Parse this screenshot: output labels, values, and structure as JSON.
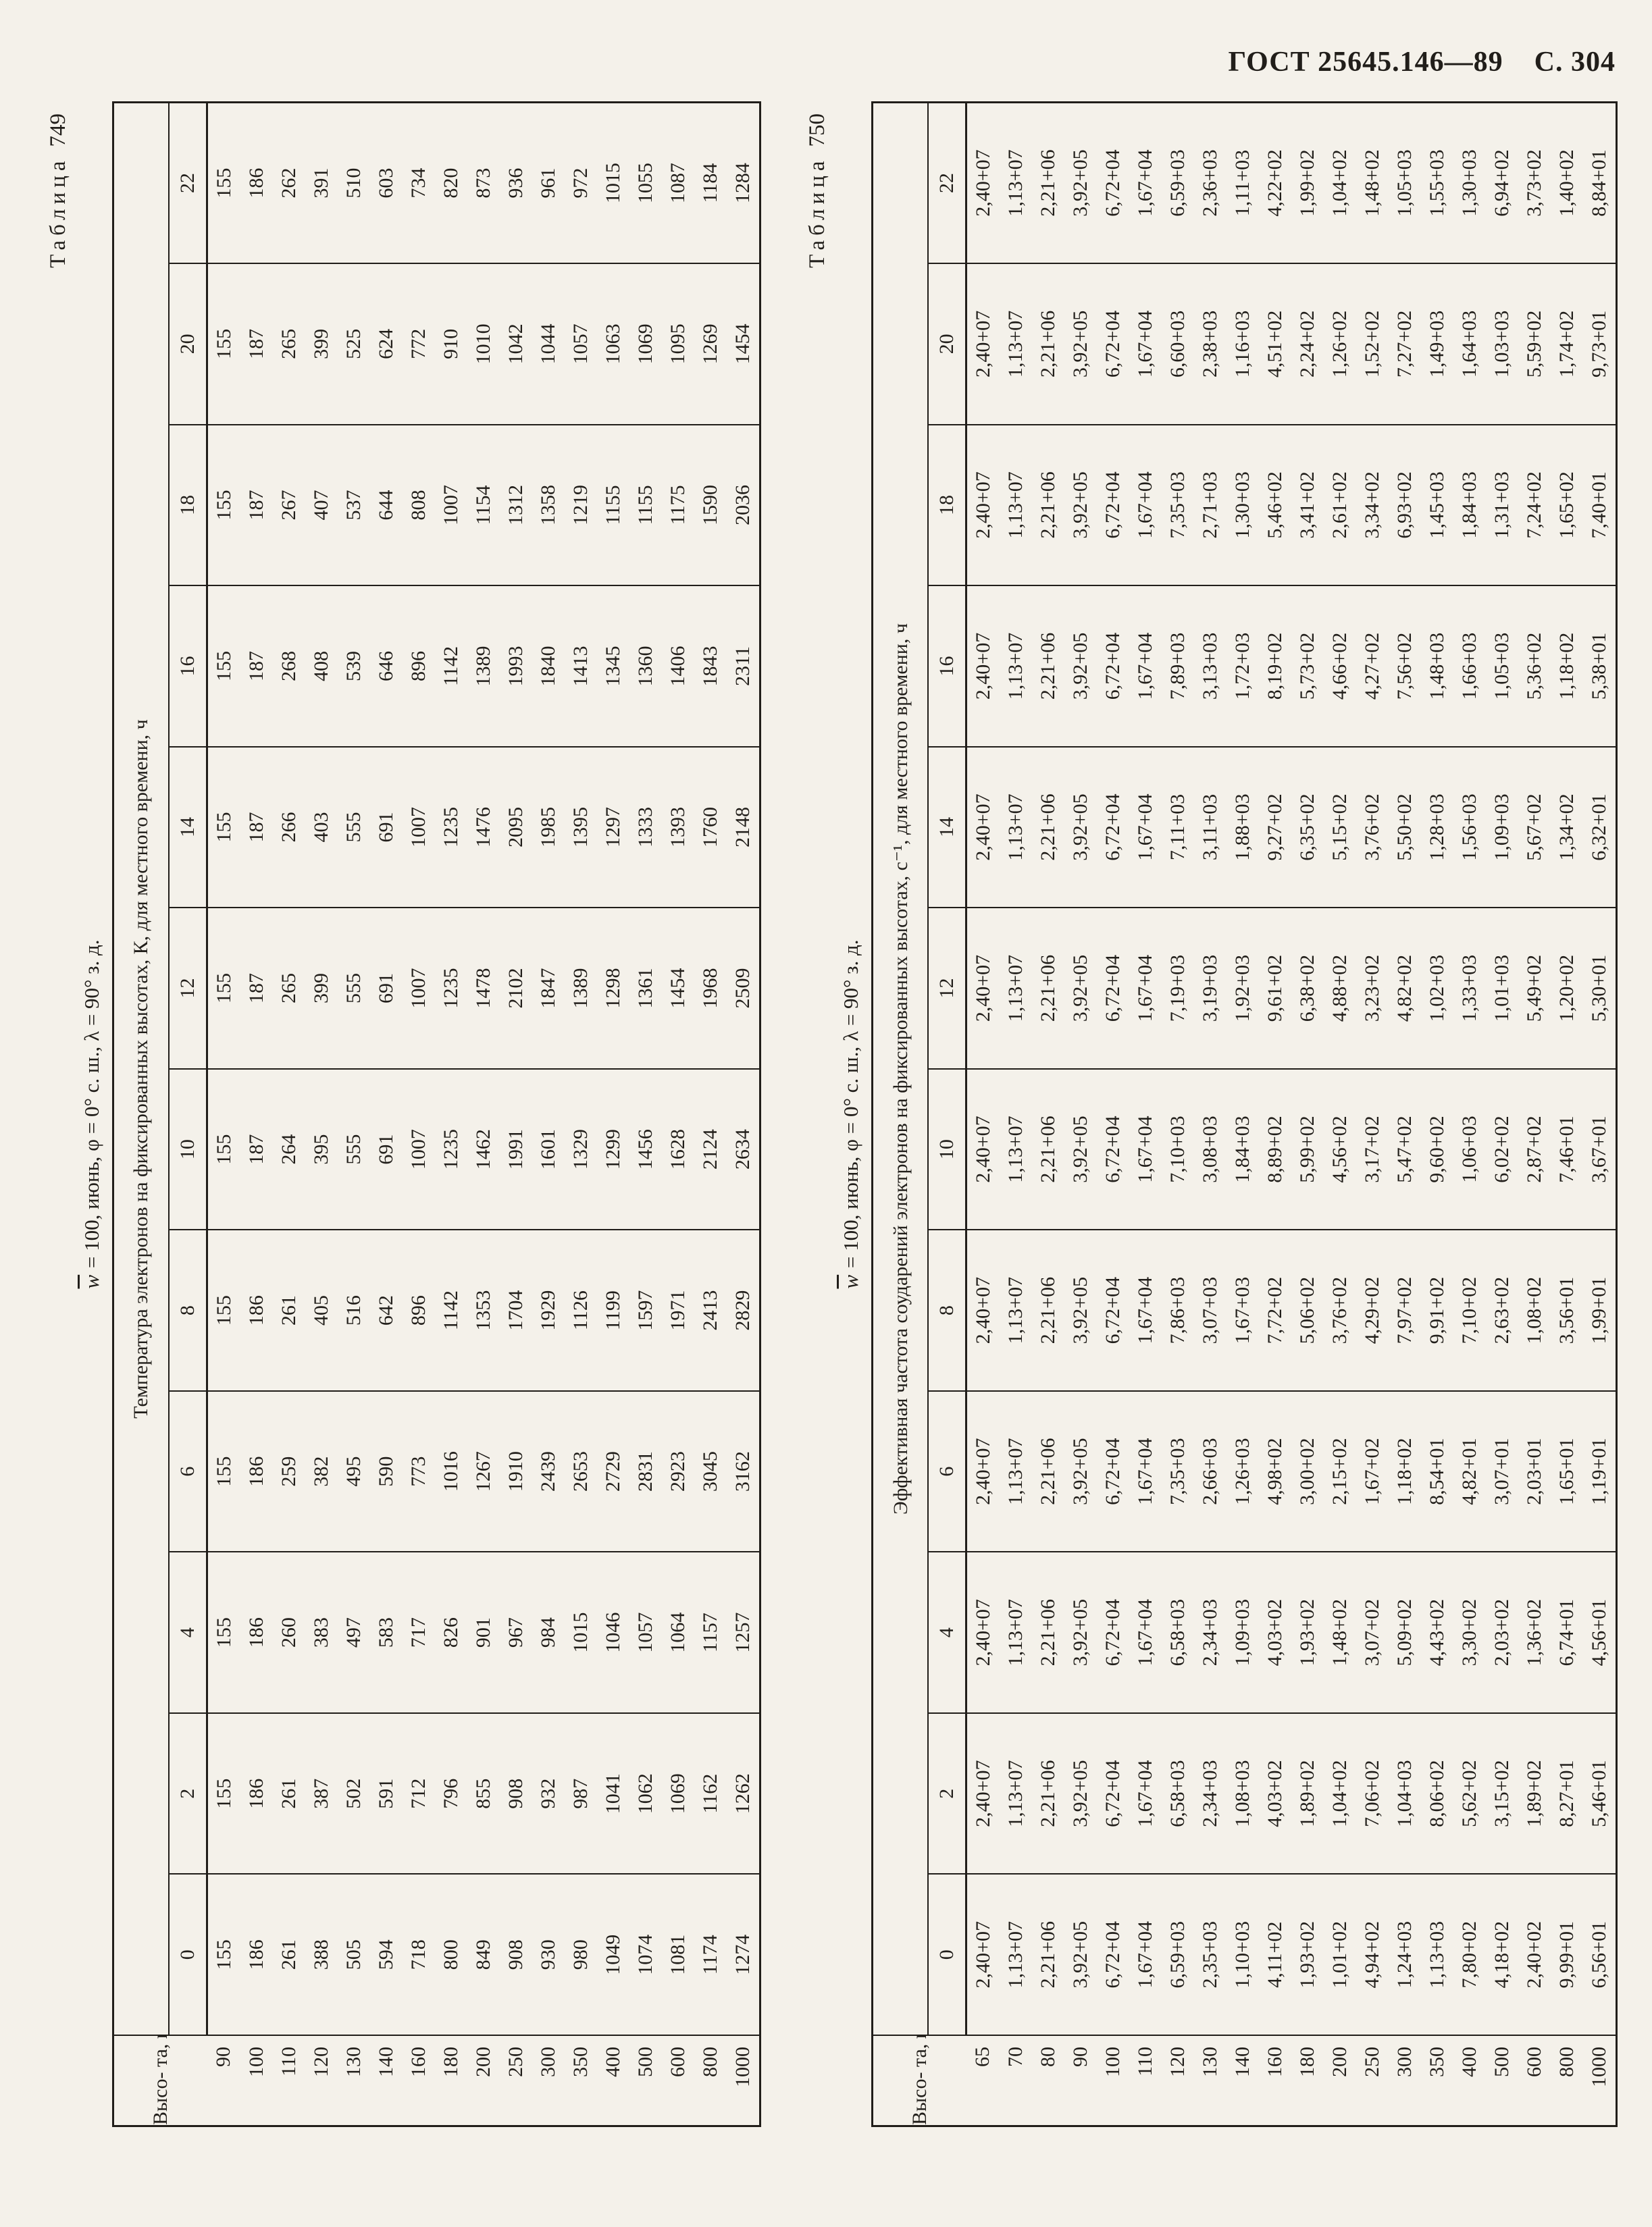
{
  "page_header": {
    "standard": "ГОСТ 25645.146—89",
    "page": "С. 304"
  },
  "tables": [
    {
      "caption_word": "Таблица",
      "caption_number": "749",
      "param_symbol": "w",
      "param_rest": " = 100, июнь, φ = 0° с. ш., λ = 90° з. д.",
      "quantity_header": "Температура электронов на фиксированных высотах, К, для местного времени, ч",
      "row_header": "Высо-\nта, км",
      "hours": [
        "0",
        "2",
        "4",
        "6",
        "8",
        "10",
        "12",
        "14",
        "16",
        "18",
        "20",
        "22"
      ],
      "heights": [
        "90",
        "100",
        "110",
        "120",
        "130",
        "140",
        "160",
        "180",
        "200",
        "250",
        "300",
        "350",
        "400",
        "500",
        "600",
        "800",
        "1000"
      ],
      "values": [
        [
          155,
          186,
          261,
          388,
          505,
          594,
          718,
          800,
          849,
          908,
          930,
          980,
          1049,
          1074,
          1081,
          1174,
          1274
        ],
        [
          155,
          186,
          261,
          387,
          502,
          591,
          712,
          796,
          855,
          908,
          932,
          987,
          1041,
          1062,
          1069,
          1162,
          1262
        ],
        [
          155,
          186,
          260,
          383,
          497,
          583,
          717,
          826,
          901,
          967,
          984,
          1015,
          1046,
          1057,
          1064,
          1157,
          1257
        ],
        [
          155,
          186,
          259,
          382,
          495,
          590,
          773,
          1016,
          1267,
          1910,
          2439,
          2653,
          2729,
          2831,
          2923,
          3045,
          3162
        ],
        [
          155,
          186,
          261,
          405,
          516,
          642,
          896,
          1142,
          1353,
          1704,
          1929,
          1126,
          1199,
          1597,
          1971,
          2413,
          2829
        ],
        [
          155,
          187,
          264,
          395,
          555,
          691,
          1007,
          1235,
          1462,
          1991,
          1601,
          1329,
          1299,
          1456,
          1628,
          2124,
          2634
        ],
        [
          155,
          187,
          265,
          399,
          555,
          691,
          1007,
          1235,
          1478,
          2102,
          1847,
          1389,
          1298,
          1361,
          1454,
          1968,
          2509
        ],
        [
          155,
          187,
          266,
          403,
          555,
          691,
          1007,
          1235,
          1476,
          2095,
          1985,
          1395,
          1297,
          1333,
          1393,
          1760,
          2148
        ],
        [
          155,
          187,
          268,
          408,
          539,
          646,
          896,
          1142,
          1389,
          1993,
          1840,
          1413,
          1345,
          1360,
          1406,
          1843,
          2311
        ],
        [
          155,
          187,
          267,
          407,
          537,
          644,
          808,
          1007,
          1154,
          1312,
          1358,
          1219,
          1155,
          1155,
          1175,
          1590,
          2036
        ],
        [
          155,
          187,
          265,
          399,
          525,
          624,
          772,
          910,
          1010,
          1042,
          1044,
          1057,
          1063,
          1069,
          1095,
          1269,
          1454
        ],
        [
          155,
          186,
          262,
          391,
          510,
          603,
          734,
          820,
          873,
          936,
          961,
          972,
          1015,
          1055,
          1087,
          1184,
          1284
        ]
      ]
    },
    {
      "caption_word": "Таблица",
      "caption_number": "750",
      "param_symbol": "w",
      "param_rest": " = 100, июнь, φ = 0° с. ш., λ = 90° з. д.",
      "quantity_header": "Эффективная частота соударений электронов на фиксированных высотах, с⁻¹, для местного времени, ч",
      "row_header": "Высо-\nта, км",
      "hours": [
        "0",
        "2",
        "4",
        "6",
        "8",
        "10",
        "12",
        "14",
        "16",
        "18",
        "20",
        "22"
      ],
      "heights": [
        "65",
        "70",
        "80",
        "90",
        "100",
        "110",
        "120",
        "130",
        "140",
        "160",
        "180",
        "200",
        "250",
        "300",
        "350",
        "400",
        "500",
        "600",
        "800",
        "1000"
      ],
      "values": [
        [
          "2,40+07",
          "1,13+07",
          "2,21+06",
          "3,92+05",
          "6,72+04",
          "1,67+04",
          "6,59+03",
          "2,35+03",
          "1,10+03",
          "4,11+02",
          "1,93+02",
          "1,01+02",
          "4,94+02",
          "1,24+03",
          "1,13+03",
          "7,80+02",
          "4,18+02",
          "2,40+02",
          "9,99+01",
          "6,56+01"
        ],
        [
          "2,40+07",
          "1,13+07",
          "2,21+06",
          "3,92+05",
          "6,72+04",
          "1,67+04",
          "6,58+03",
          "2,34+03",
          "1,08+03",
          "4,03+02",
          "1,89+02",
          "1,04+02",
          "7,06+02",
          "1,04+03",
          "8,06+02",
          "5,62+02",
          "3,15+02",
          "1,89+02",
          "8,27+01",
          "5,46+01"
        ],
        [
          "2,40+07",
          "1,13+07",
          "2,21+06",
          "3,92+05",
          "6,72+04",
          "1,67+04",
          "6,58+03",
          "2,34+03",
          "1,09+03",
          "4,03+02",
          "1,93+02",
          "1,48+02",
          "3,07+02",
          "5,09+02",
          "4,43+02",
          "3,30+02",
          "2,03+02",
          "1,36+02",
          "6,74+01",
          "4,56+01"
        ],
        [
          "2,40+07",
          "1,13+07",
          "2,21+06",
          "3,92+05",
          "6,72+04",
          "1,67+04",
          "7,35+03",
          "2,66+03",
          "1,26+03",
          "4,98+02",
          "3,00+02",
          "2,15+02",
          "1,67+02",
          "1,18+02",
          "8,54+01",
          "4,82+01",
          "3,07+01",
          "2,03+01",
          "1,65+01",
          "1,19+01"
        ],
        [
          "2,40+07",
          "1,13+07",
          "2,21+06",
          "3,92+05",
          "6,72+04",
          "1,67+04",
          "7,86+03",
          "3,07+03",
          "1,67+03",
          "7,72+02",
          "5,06+02",
          "3,76+02",
          "4,29+02",
          "7,97+02",
          "9,91+02",
          "7,10+02",
          "2,63+02",
          "1,08+02",
          "3,56+01",
          "1,99+01"
        ],
        [
          "2,40+07",
          "1,13+07",
          "2,21+06",
          "3,92+05",
          "6,72+04",
          "1,67+04",
          "7,10+03",
          "3,08+03",
          "1,84+03",
          "8,89+02",
          "5,99+02",
          "4,56+02",
          "3,17+02",
          "5,47+02",
          "9,60+02",
          "1,06+03",
          "6,02+02",
          "2,87+02",
          "7,46+01",
          "3,67+01"
        ],
        [
          "2,40+07",
          "1,13+07",
          "2,21+06",
          "3,92+05",
          "6,72+04",
          "1,67+04",
          "7,19+03",
          "3,19+03",
          "1,92+03",
          "9,61+02",
          "6,38+02",
          "4,88+02",
          "3,23+02",
          "4,82+02",
          "1,02+03",
          "1,33+03",
          "1,01+03",
          "5,49+02",
          "1,20+02",
          "5,30+01"
        ],
        [
          "2,40+07",
          "1,13+07",
          "2,21+06",
          "3,92+05",
          "6,72+04",
          "1,67+04",
          "7,11+03",
          "3,11+03",
          "1,88+03",
          "9,27+02",
          "6,35+02",
          "5,15+02",
          "3,76+02",
          "5,50+02",
          "1,28+03",
          "1,56+03",
          "1,09+03",
          "5,67+02",
          "1,34+02",
          "6,32+01"
        ],
        [
          "2,40+07",
          "1,13+07",
          "2,21+06",
          "3,92+05",
          "6,72+04",
          "1,67+04",
          "7,89+03",
          "3,13+03",
          "1,72+03",
          "8,19+02",
          "5,73+02",
          "4,66+02",
          "4,27+02",
          "7,56+02",
          "1,48+03",
          "1,66+03",
          "1,05+03",
          "5,36+02",
          "1,18+02",
          "5,38+01"
        ],
        [
          "2,40+07",
          "1,13+07",
          "2,21+06",
          "3,92+05",
          "6,72+04",
          "1,67+04",
          "7,35+03",
          "2,71+03",
          "1,30+03",
          "5,46+02",
          "3,41+02",
          "2,61+02",
          "3,34+02",
          "6,93+02",
          "1,45+03",
          "1,84+03",
          "1,31+03",
          "7,24+02",
          "1,65+02",
          "7,40+01"
        ],
        [
          "2,40+07",
          "1,13+07",
          "2,21+06",
          "3,92+05",
          "6,72+04",
          "1,67+04",
          "6,60+03",
          "2,38+03",
          "1,16+03",
          "4,51+02",
          "2,24+02",
          "1,26+02",
          "1,52+02",
          "7,27+02",
          "1,49+03",
          "1,64+03",
          "1,03+03",
          "5,59+02",
          "1,74+02",
          "9,73+01"
        ],
        [
          "2,40+07",
          "1,13+07",
          "2,21+06",
          "3,92+05",
          "6,72+04",
          "1,67+04",
          "6,59+03",
          "2,36+03",
          "1,11+03",
          "4,22+02",
          "1,99+02",
          "1,04+02",
          "1,48+02",
          "1,05+03",
          "1,55+03",
          "1,30+03",
          "6,94+02",
          "3,73+02",
          "1,40+02",
          "8,84+01"
        ]
      ]
    }
  ]
}
